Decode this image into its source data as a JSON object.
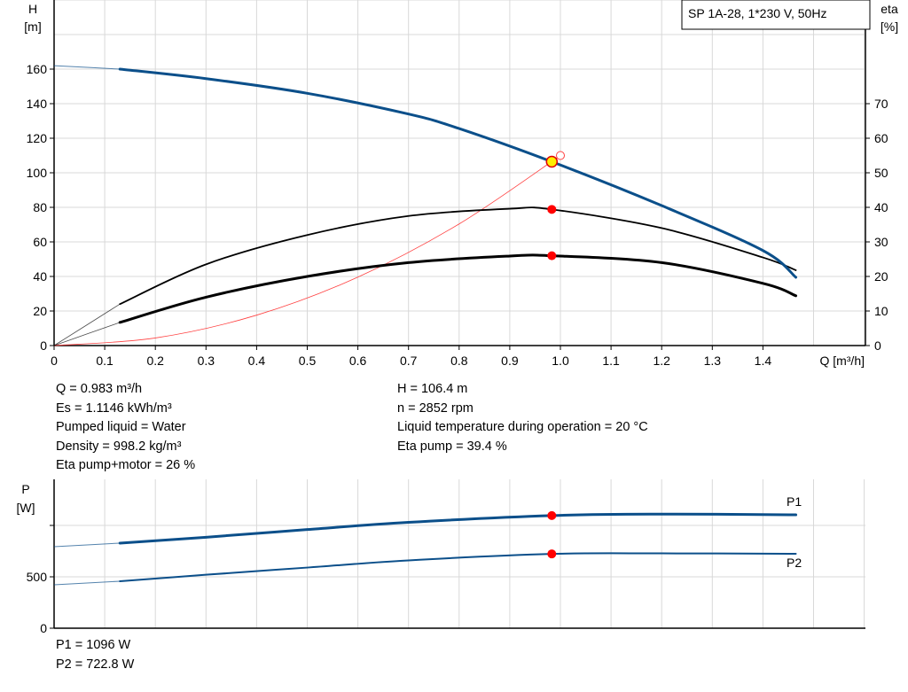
{
  "chart_data": [
    {
      "type": "line",
      "title": "SP 1A-28, 1*230 V, 50Hz",
      "xlabel": "Q [m³/h]",
      "ylabel": "H",
      "ylabel_unit": "[m]",
      "y2label": "eta",
      "y2label_unit": "[%]",
      "xlim": [
        0,
        1.6
      ],
      "ylim": [
        0,
        200
      ],
      "y2lim": [
        0,
        100
      ],
      "grid": true,
      "x_ticks": [
        "0",
        "0.1",
        "0.2",
        "0.3",
        "0.4",
        "0.5",
        "0.6",
        "0.7",
        "0.8",
        "0.9",
        "1.0",
        "1.1",
        "1.2",
        "1.3",
        "1.4"
      ],
      "y_ticks": [
        "0",
        "20",
        "40",
        "60",
        "80",
        "100",
        "120",
        "140",
        "160"
      ],
      "y2_ticks": [
        "0",
        "10",
        "20",
        "30",
        "40",
        "50",
        "60",
        "70"
      ],
      "series": [
        {
          "id": "H",
          "axis": "left",
          "color": "#0b4f8a",
          "x": [
            0,
            0.13,
            0.3,
            0.5,
            0.7,
            0.8,
            0.983,
            1.2,
            1.4,
            1.465
          ],
          "y": [
            162,
            160,
            154.5,
            146,
            134,
            125.6,
            106.4,
            81,
            55,
            39.5
          ]
        },
        {
          "id": "eta_pump",
          "axis": "right",
          "color": "#000000",
          "x": [
            0,
            0.13,
            0.3,
            0.5,
            0.7,
            0.9,
            0.983,
            1.2,
            1.4,
            1.465
          ],
          "y": [
            0,
            12,
            23.5,
            32,
            37.5,
            39.6,
            39.4,
            34,
            25.5,
            21.8
          ]
        },
        {
          "id": "eta_pump_motor",
          "axis": "right",
          "color": "#000000",
          "x": [
            0,
            0.13,
            0.3,
            0.5,
            0.7,
            0.9,
            0.983,
            1.2,
            1.4,
            1.465
          ],
          "y": [
            0,
            6.7,
            14,
            20,
            24,
            25.9,
            26,
            24,
            18,
            14.4
          ]
        },
        {
          "id": "system_curve",
          "axis": "left",
          "color": "#ff4040",
          "x": [
            0,
            0.2,
            0.4,
            0.6,
            0.8,
            1.0
          ],
          "y": [
            0,
            4.4,
            17.6,
            39.6,
            70.4,
            110
          ]
        }
      ],
      "operating_point": {
        "Q": 0.983,
        "H": 106.4,
        "eta_pump": 39.4,
        "eta_pump_motor": 26
      }
    },
    {
      "type": "line",
      "ylabel": "P",
      "ylabel_unit": "[W]",
      "xlim": [
        0,
        1.6
      ],
      "ylim": [
        0,
        1450
      ],
      "grid": true,
      "y_ticks": [
        "0",
        "500"
      ],
      "series": [
        {
          "name": "P1",
          "color": "#0b4f8a",
          "x": [
            0,
            0.13,
            0.3,
            0.5,
            0.7,
            0.983,
            1.2,
            1.465
          ],
          "y": [
            793,
            828,
            885,
            960,
            1030,
            1096,
            1110,
            1103
          ]
        },
        {
          "name": "P2",
          "color": "#0b4f8a",
          "x": [
            0,
            0.13,
            0.3,
            0.5,
            0.7,
            0.983,
            1.2,
            1.465
          ],
          "y": [
            422,
            457,
            520,
            590,
            660,
            722.8,
            728,
            724
          ]
        }
      ]
    }
  ],
  "info_left": [
    "Q = 0.983 m³/h",
    "Es = 1.1146 kWh/m³",
    "Pumped liquid = Water",
    "Density = 998.2 kg/m³",
    "Eta pump+motor = 26 %"
  ],
  "info_right": [
    "H = 106.4 m",
    "n = 2852 rpm",
    "Liquid temperature during operation = 20 °C",
    "Eta pump = 39.4 %"
  ],
  "info_power": [
    "P1 = 1096 W",
    "P2 = 722.8 W"
  ]
}
